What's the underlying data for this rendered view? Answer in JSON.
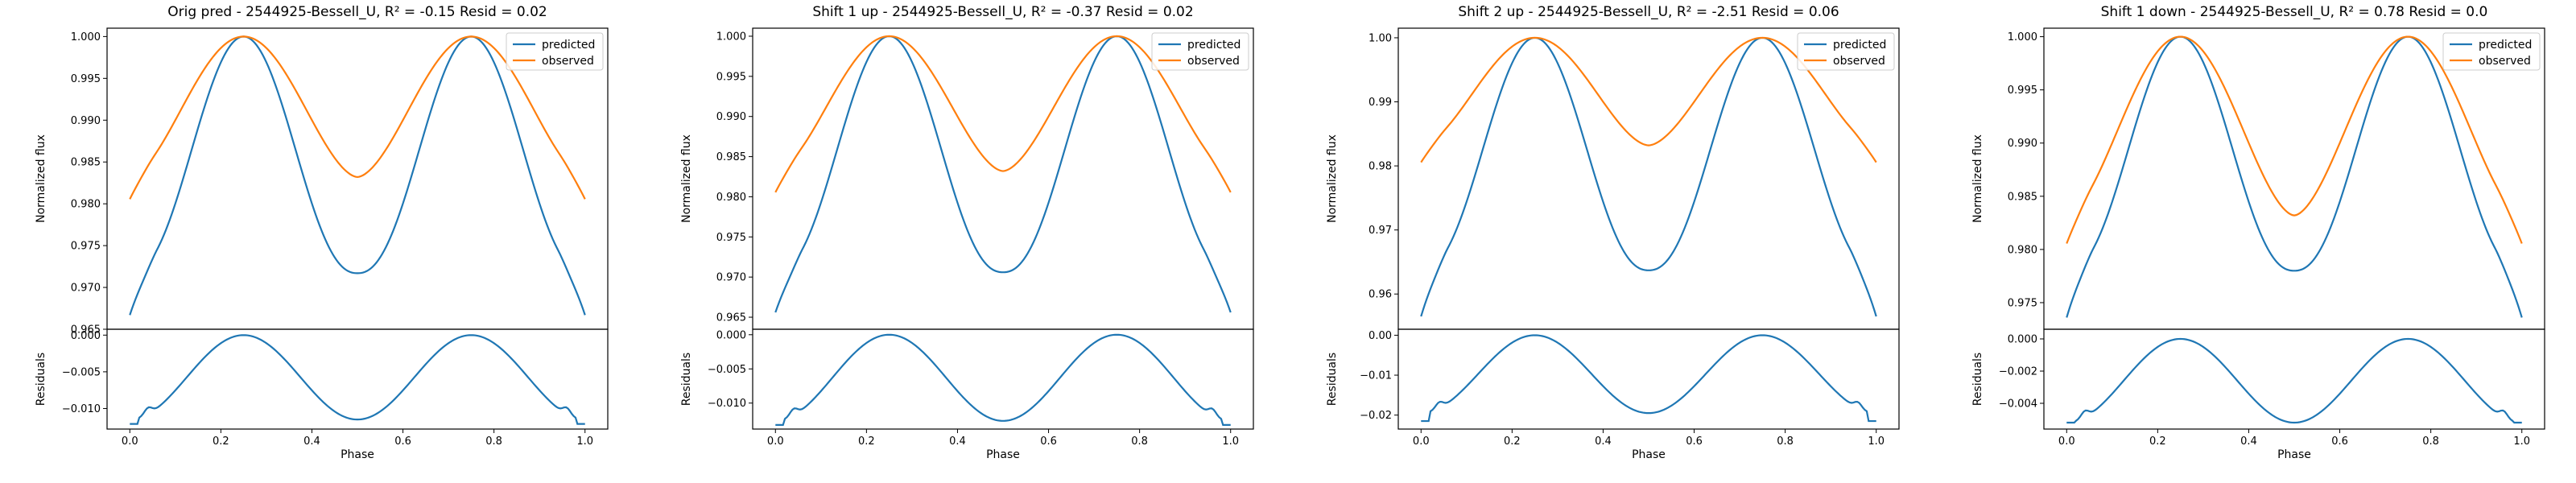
{
  "colors": {
    "predicted": "#1f77b4",
    "observed": "#ff7f0e"
  },
  "chart_data": [
    {
      "type": "line",
      "title": "Orig pred - 2544925-Bessell_U, R² = -0.15 Resid = 0.02",
      "legend": [
        "predicted",
        "observed"
      ],
      "legend_position": "top-right",
      "main": {
        "ylabel": "Normalized flux",
        "ylim": [
          0.965,
          1.001
        ],
        "yticks": [
          0.965,
          0.97,
          0.975,
          0.98,
          0.985,
          0.99,
          0.995,
          1.0
        ],
        "ytick_labels": [
          "0.965",
          "0.970",
          "0.975",
          "0.980",
          "0.985",
          "0.990",
          "0.995",
          "1.000"
        ],
        "predicted": {
          "trough": 0.9717,
          "edge": 0.9667
        },
        "observed": {
          "trough": 0.9832,
          "edge": 0.9788
        }
      },
      "resid": {
        "ylabel": "Residuals",
        "ylim": [
          -0.0128,
          0.0008
        ],
        "yticks": [
          -0.01,
          -0.005,
          0.0
        ],
        "ytick_labels": [
          "−0.010",
          "−0.005",
          "0.000"
        ],
        "trough": -0.0115,
        "edge": -0.0121
      },
      "xlabel": "Phase",
      "xlim": [
        -0.05,
        1.05
      ],
      "xticks": [
        0.0,
        0.2,
        0.4,
        0.6,
        0.8,
        1.0
      ],
      "xtick_labels": [
        "0.0",
        "0.2",
        "0.4",
        "0.6",
        "0.8",
        "1.0"
      ]
    },
    {
      "type": "line",
      "title": "Shift 1 up - 2544925-Bessell_U, R² = -0.37 Resid = 0.02",
      "legend": [
        "predicted",
        "observed"
      ],
      "legend_position": "top-right",
      "main": {
        "ylabel": "Normalized flux",
        "ylim": [
          0.9635,
          1.001
        ],
        "yticks": [
          0.965,
          0.97,
          0.975,
          0.98,
          0.985,
          0.99,
          0.995,
          1.0
        ],
        "ytick_labels": [
          "0.965",
          "0.970",
          "0.975",
          "0.980",
          "0.985",
          "0.990",
          "0.995",
          "1.000"
        ],
        "predicted": {
          "trough": 0.9706,
          "edge": 0.9656
        },
        "observed": {
          "trough": 0.9832,
          "edge": 0.9788
        }
      },
      "resid": {
        "ylabel": "Residuals",
        "ylim": [
          -0.0138,
          0.0008
        ],
        "yticks": [
          -0.01,
          -0.005,
          0.0
        ],
        "ytick_labels": [
          "−0.010",
          "−0.005",
          "0.000"
        ],
        "trough": -0.0126,
        "edge": -0.0132
      },
      "xlabel": "Phase",
      "xlim": [
        -0.05,
        1.05
      ],
      "xticks": [
        0.0,
        0.2,
        0.4,
        0.6,
        0.8,
        1.0
      ],
      "xtick_labels": [
        "0.0",
        "0.2",
        "0.4",
        "0.6",
        "0.8",
        "1.0"
      ]
    },
    {
      "type": "line",
      "title": "Shift 2 up - 2544925-Bessell_U, R² = -2.51 Resid = 0.06",
      "legend": [
        "predicted",
        "observed"
      ],
      "legend_position": "top-right",
      "main": {
        "ylabel": "Normalized flux",
        "ylim": [
          0.9545,
          1.0015
        ],
        "yticks": [
          0.96,
          0.97,
          0.98,
          0.99,
          1.0
        ],
        "ytick_labels": [
          "0.96",
          "0.97",
          "0.98",
          "0.99",
          "1.00"
        ],
        "predicted": {
          "trough": 0.9637,
          "edge": 0.9565
        },
        "observed": {
          "trough": 0.9832,
          "edge": 0.9788
        }
      },
      "resid": {
        "ylabel": "Residuals",
        "ylim": [
          -0.0235,
          0.0015
        ],
        "yticks": [
          -0.02,
          -0.01,
          0.0
        ],
        "ytick_labels": [
          "−0.02",
          "−0.01",
          "0.00"
        ],
        "trough": -0.0195,
        "edge": -0.0215
      },
      "xlabel": "Phase",
      "xlim": [
        -0.05,
        1.05
      ],
      "xticks": [
        0.0,
        0.2,
        0.4,
        0.6,
        0.8,
        1.0
      ],
      "xtick_labels": [
        "0.0",
        "0.2",
        "0.4",
        "0.6",
        "0.8",
        "1.0"
      ]
    },
    {
      "type": "line",
      "title": "Shift 1 down - 2544925-Bessell_U, R² = 0.78 Resid = 0.0",
      "legend": [
        "predicted",
        "observed"
      ],
      "legend_position": "top-right",
      "main": {
        "ylabel": "Normalized flux",
        "ylim": [
          0.9725,
          1.0008
        ],
        "yticks": [
          0.975,
          0.98,
          0.985,
          0.99,
          0.995,
          1.0
        ],
        "ytick_labels": [
          "0.975",
          "0.980",
          "0.985",
          "0.990",
          "0.995",
          "1.000"
        ],
        "predicted": {
          "trough": 0.978,
          "edge": 0.9736
        },
        "observed": {
          "trough": 0.9832,
          "edge": 0.9788
        }
      },
      "resid": {
        "ylabel": "Residuals",
        "ylim": [
          -0.0056,
          0.0006
        ],
        "yticks": [
          -0.004,
          -0.002,
          0.0
        ],
        "ytick_labels": [
          "−0.004",
          "−0.002",
          "0.000"
        ],
        "trough": -0.0052,
        "edge": -0.0052
      },
      "xlabel": "Phase",
      "xlim": [
        -0.05,
        1.05
      ],
      "xticks": [
        0.0,
        0.2,
        0.4,
        0.6,
        0.8,
        1.0
      ],
      "xtick_labels": [
        "0.0",
        "0.2",
        "0.4",
        "0.6",
        "0.8",
        "1.0"
      ]
    }
  ]
}
